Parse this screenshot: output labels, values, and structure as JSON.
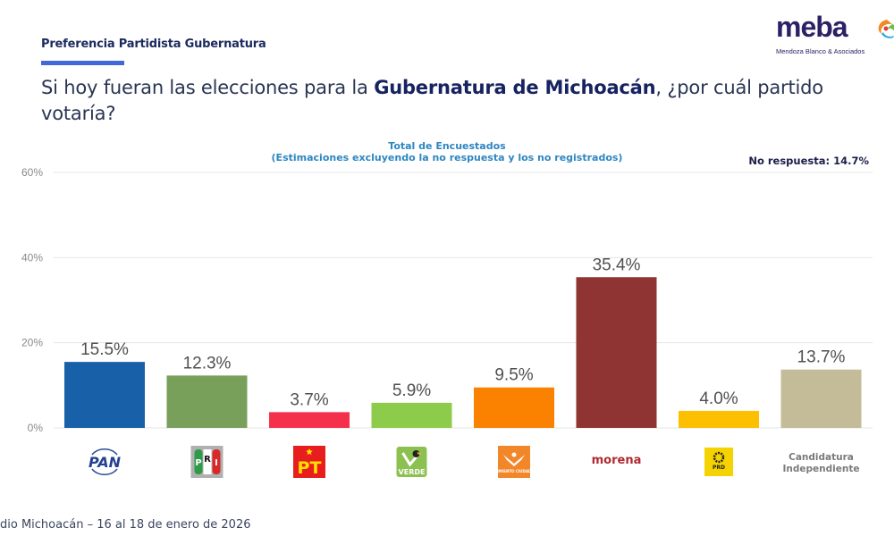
{
  "header": {
    "section_label": "Preferencia Partidista Gubernatura",
    "question_pre": "Si hoy fueran las elecciones para la ",
    "question_bold": "Gubernatura de Michoacán",
    "question_post": ", ¿por cuál partido votaría?"
  },
  "logo": {
    "word": "meba",
    "subtitle": "Mendoza Blanco & Asociados"
  },
  "footer": {
    "text": "dio Michoacán – 16 al 18 de enero de 2026"
  },
  "chart_data": {
    "type": "bar",
    "title": "Total de Encuestados",
    "subtitle": "(Estimaciones excluyendo la no respuesta y los no registrados)",
    "annotation": "No respuesta: 14.7%",
    "xlabel": "",
    "ylabel": "",
    "ylim": [
      0,
      60
    ],
    "yticks": [
      0,
      20,
      40,
      60
    ],
    "ytick_labels": [
      "0%",
      "20%",
      "40%",
      "60%"
    ],
    "grid": true,
    "categories": [
      "PAN",
      "PRI",
      "PT",
      "VERDE",
      "Movimiento Ciudadano",
      "morena",
      "PRD",
      "Candidatura Independiente"
    ],
    "values": [
      15.5,
      12.3,
      3.7,
      5.9,
      9.5,
      35.4,
      4.0,
      13.7
    ],
    "value_labels": [
      "15.5%",
      "12.3%",
      "3.7%",
      "5.9%",
      "9.5%",
      "35.4%",
      "4.0%",
      "13.7%"
    ],
    "colors": [
      "#1860a8",
      "#78a05a",
      "#f5304a",
      "#8ccc4a",
      "#fb8200",
      "#903333",
      "#fcc000",
      "#c4bb98"
    ],
    "category_icons": [
      {
        "kind": "pan-logo",
        "text": "PAN"
      },
      {
        "kind": "pri-logo",
        "text": "PRI"
      },
      {
        "kind": "pt-logo",
        "text": "PT"
      },
      {
        "kind": "verde-logo",
        "text": "VERDE"
      },
      {
        "kind": "mc-logo",
        "text": "MOVIMIENTO CIUDADANO"
      },
      {
        "kind": "morena-wordmark",
        "text": "morena"
      },
      {
        "kind": "prd-logo",
        "text": "PRD"
      },
      {
        "kind": "text-label",
        "text": "Candidatura Independiente",
        "lines": [
          "Candidatura",
          "Independiente"
        ]
      }
    ]
  }
}
